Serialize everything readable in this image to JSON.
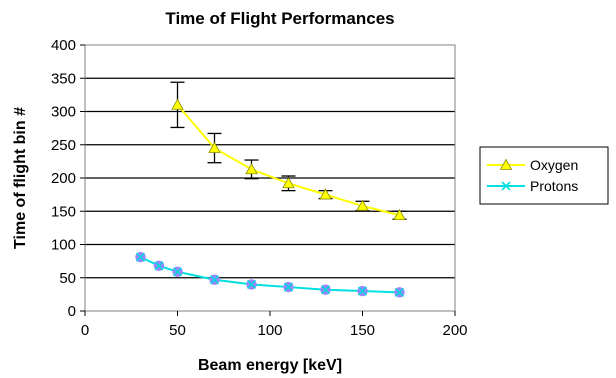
{
  "chart_data": {
    "type": "line",
    "title": "Time of Flight Performances",
    "xlabel": "Beam energy [keV]",
    "ylabel": "Time of flight bin #",
    "xlim": [
      0,
      200
    ],
    "ylim": [
      0,
      400
    ],
    "xticks": [
      0,
      50,
      100,
      150,
      200
    ],
    "yticks": [
      0,
      50,
      100,
      150,
      200,
      250,
      300,
      350,
      400
    ],
    "grid": "horizontal",
    "legend_position": "right",
    "series": [
      {
        "name": "Oxygen",
        "line_color": "#ffff00",
        "marker": "triangle",
        "marker_color": "#ffff00",
        "x": [
          50,
          70,
          90,
          110,
          130,
          150,
          170
        ],
        "y": [
          310,
          245,
          213,
          192,
          175,
          158,
          144
        ],
        "error": [
          34,
          22,
          14,
          11,
          6,
          7,
          6
        ]
      },
      {
        "name": "Protons",
        "line_color": "#00e0e0",
        "marker": "x",
        "marker_color": "#9b84ff",
        "x": [
          30,
          40,
          50,
          70,
          90,
          110,
          130,
          150,
          170
        ],
        "y": [
          81,
          68,
          59,
          47,
          40,
          36,
          32,
          30,
          28
        ]
      }
    ]
  }
}
